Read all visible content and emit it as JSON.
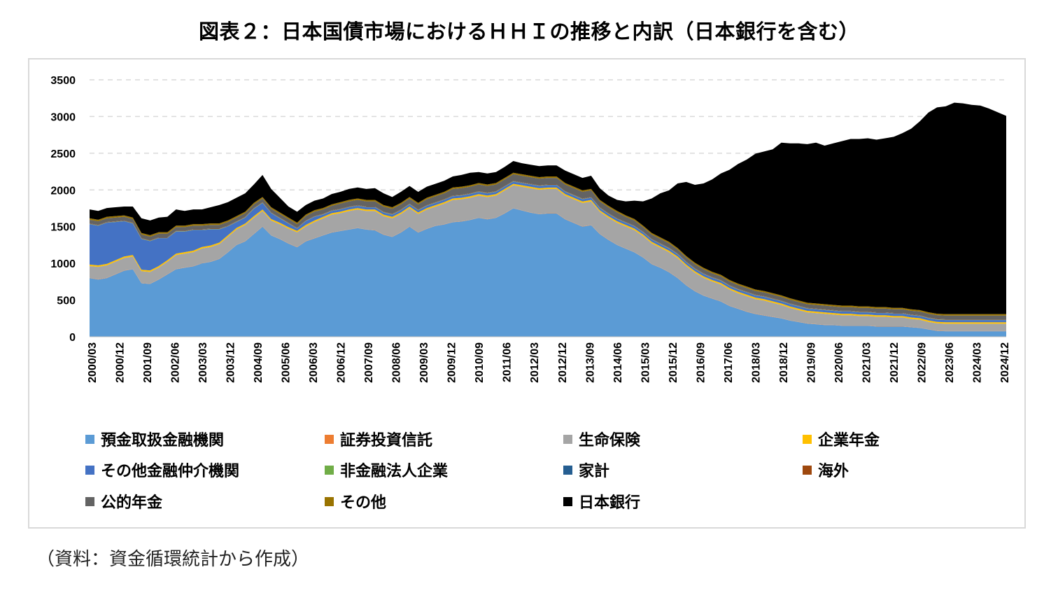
{
  "title": "図表２：日本国債市場におけるＨＨＩの推移と内訳（日本銀行を含む）",
  "source_note": "（資料：資金循環統計から作成）",
  "chart_data": {
    "type": "area",
    "stacked": true,
    "title": "図表２：日本国債市場におけるＨＨＩの推移と内訳（日本銀行を含む）",
    "xlabel": "",
    "ylabel": "",
    "ylim": [
      0,
      3500
    ],
    "yticks": [
      0,
      500,
      1000,
      1500,
      2000,
      2500,
      3000,
      3500
    ],
    "grid": "horizontal dashed",
    "legend_position": "bottom",
    "x_tick_labels": [
      "2000/03",
      "2000/12",
      "2001/09",
      "2002/06",
      "2003/03",
      "2003/12",
      "2004/09",
      "2005/06",
      "2006/03",
      "2006/12",
      "2007/09",
      "2008/06",
      "2009/03",
      "2009/12",
      "2010/09",
      "2011/06",
      "2012/03",
      "2012/12",
      "2013/09",
      "2014/06",
      "2015/03",
      "2015/12",
      "2016/09",
      "2017/06",
      "2018/03",
      "2018/12",
      "2019/09",
      "2020/06",
      "2021/03",
      "2021/12",
      "2022/09",
      "2023/06",
      "2024/03",
      "2024/12"
    ],
    "series": [
      {
        "name": "預金取扱金融機関",
        "color": "#5b9bd5",
        "values": [
          800,
          780,
          800,
          850,
          900,
          920,
          730,
          720,
          780,
          850,
          920,
          940,
          960,
          1000,
          1020,
          1060,
          1150,
          1250,
          1300,
          1400,
          1500,
          1380,
          1330,
          1270,
          1220,
          1300,
          1340,
          1380,
          1420,
          1440,
          1460,
          1480,
          1460,
          1450,
          1390,
          1360,
          1420,
          1500,
          1420,
          1470,
          1510,
          1530,
          1560,
          1570,
          1590,
          1620,
          1600,
          1620,
          1680,
          1750,
          1720,
          1690,
          1670,
          1680,
          1680,
          1600,
          1550,
          1500,
          1520,
          1400,
          1320,
          1250,
          1200,
          1150,
          1080,
          990,
          940,
          880,
          800,
          700,
          620,
          560,
          520,
          480,
          420,
          380,
          340,
          310,
          290,
          270,
          250,
          220,
          200,
          180,
          170,
          160,
          160,
          150,
          150,
          150,
          150,
          140,
          140,
          140,
          140,
          130,
          120,
          100,
          80,
          75,
          75,
          75,
          75,
          75,
          75,
          75,
          75
        ]
      },
      {
        "name": "証券投資信託",
        "color": "#ed7d31",
        "values": [
          3,
          3,
          3,
          3,
          3,
          3,
          3,
          3,
          3,
          3,
          3,
          3,
          3,
          3,
          3,
          3,
          3,
          3,
          3,
          3,
          3,
          3,
          3,
          3,
          3,
          3,
          3,
          3,
          3,
          3,
          3,
          3,
          3,
          3,
          3,
          3,
          3,
          3,
          3,
          3,
          3,
          3,
          3,
          3,
          3,
          3,
          3,
          3,
          3,
          3,
          3,
          3,
          3,
          3,
          3,
          3,
          3,
          3,
          3,
          3,
          3,
          3,
          3,
          3,
          3,
          3,
          3,
          3,
          3,
          3,
          3,
          3,
          3,
          3,
          3,
          3,
          3,
          3,
          3,
          3,
          3,
          3,
          3,
          3,
          3,
          3,
          3,
          3,
          3,
          3,
          3,
          3,
          3,
          3,
          3,
          3,
          3,
          3,
          3,
          3,
          3,
          3,
          3,
          3,
          3,
          3,
          3
        ]
      },
      {
        "name": "生命保険",
        "color": "#a5a5a5",
        "values": [
          160,
          170,
          170,
          170,
          170,
          170,
          160,
          160,
          160,
          170,
          190,
          190,
          190,
          200,
          200,
          200,
          210,
          210,
          220,
          220,
          210,
          200,
          200,
          200,
          200,
          200,
          220,
          230,
          240,
          240,
          250,
          250,
          250,
          260,
          250,
          250,
          250,
          250,
          250,
          260,
          260,
          280,
          300,
          300,
          300,
          300,
          300,
          300,
          310,
          310,
          320,
          330,
          330,
          330,
          330,
          320,
          320,
          320,
          320,
          300,
          300,
          300,
          300,
          300,
          290,
          280,
          270,
          270,
          270,
          260,
          250,
          240,
          230,
          230,
          220,
          210,
          210,
          200,
          200,
          190,
          180,
          170,
          160,
          150,
          150,
          150,
          140,
          140,
          140,
          130,
          130,
          130,
          130,
          120,
          120,
          110,
          110,
          100,
          100,
          100,
          100,
          100,
          100,
          100,
          100,
          100,
          100
        ]
      },
      {
        "name": "企業年金",
        "color": "#ffc000",
        "values": [
          20,
          20,
          20,
          20,
          20,
          20,
          20,
          20,
          20,
          20,
          20,
          20,
          20,
          20,
          20,
          20,
          20,
          20,
          20,
          20,
          20,
          20,
          20,
          20,
          20,
          20,
          20,
          20,
          20,
          20,
          20,
          20,
          20,
          20,
          20,
          20,
          20,
          20,
          20,
          20,
          20,
          20,
          20,
          20,
          20,
          20,
          20,
          20,
          20,
          20,
          20,
          20,
          20,
          20,
          20,
          20,
          20,
          20,
          20,
          20,
          20,
          20,
          20,
          20,
          20,
          20,
          20,
          20,
          20,
          20,
          20,
          20,
          20,
          20,
          20,
          20,
          20,
          20,
          20,
          20,
          20,
          20,
          20,
          20,
          20,
          20,
          20,
          20,
          20,
          20,
          20,
          20,
          20,
          20,
          20,
          20,
          20,
          20,
          20,
          20,
          20,
          20,
          20,
          20,
          20,
          20,
          20
        ]
      },
      {
        "name": "その他金融仲介機関",
        "color": "#4472c4",
        "values": [
          550,
          540,
          560,
          520,
          480,
          430,
          420,
          400,
          380,
          300,
          300,
          280,
          280,
          230,
          220,
          180,
          120,
          80,
          80,
          100,
          90,
          80,
          60,
          50,
          30,
          50,
          50,
          30,
          30,
          30,
          30,
          30,
          30,
          30,
          30,
          30,
          30,
          30,
          30,
          30,
          30,
          30,
          30,
          30,
          30,
          30,
          30,
          30,
          30,
          30,
          30,
          30,
          30,
          30,
          30,
          30,
          30,
          30,
          30,
          30,
          30,
          30,
          30,
          30,
          30,
          30,
          30,
          30,
          30,
          30,
          30,
          30,
          30,
          30,
          30,
          30,
          30,
          30,
          30,
          30,
          30,
          30,
          30,
          30,
          30,
          30,
          30,
          30,
          30,
          30,
          30,
          30,
          30,
          30,
          30,
          30,
          30,
          30,
          30,
          30,
          30,
          30,
          30,
          30,
          30,
          30,
          30
        ]
      },
      {
        "name": "非金融法人企業",
        "color": "#70ad47",
        "values": [
          3,
          3,
          3,
          3,
          3,
          3,
          3,
          3,
          3,
          3,
          3,
          3,
          3,
          3,
          3,
          3,
          3,
          3,
          3,
          3,
          3,
          3,
          3,
          3,
          3,
          3,
          3,
          3,
          3,
          3,
          3,
          3,
          3,
          3,
          3,
          3,
          3,
          3,
          3,
          3,
          3,
          3,
          3,
          3,
          3,
          3,
          3,
          3,
          3,
          3,
          3,
          3,
          3,
          3,
          3,
          3,
          3,
          3,
          3,
          3,
          3,
          3,
          3,
          3,
          3,
          3,
          3,
          3,
          3,
          3,
          3,
          3,
          3,
          3,
          3,
          3,
          3,
          3,
          3,
          3,
          3,
          3,
          3,
          3,
          3,
          3,
          3,
          3,
          3,
          3,
          3,
          3,
          3,
          3,
          3,
          3,
          3,
          3,
          3,
          3,
          3,
          3,
          3,
          3,
          3,
          3,
          3
        ]
      },
      {
        "name": "家計",
        "color": "#255e91",
        "values": [
          3,
          3,
          3,
          3,
          3,
          3,
          3,
          3,
          3,
          3,
          3,
          3,
          3,
          3,
          3,
          3,
          3,
          3,
          3,
          3,
          3,
          3,
          3,
          3,
          3,
          3,
          3,
          3,
          3,
          3,
          3,
          3,
          3,
          3,
          3,
          3,
          3,
          3,
          3,
          3,
          3,
          3,
          3,
          3,
          3,
          3,
          3,
          3,
          3,
          3,
          3,
          3,
          3,
          3,
          3,
          3,
          3,
          3,
          3,
          3,
          3,
          3,
          3,
          3,
          3,
          3,
          3,
          3,
          3,
          3,
          3,
          3,
          3,
          3,
          3,
          3,
          3,
          3,
          3,
          3,
          3,
          3,
          3,
          3,
          3,
          3,
          3,
          3,
          3,
          3,
          3,
          3,
          3,
          3,
          3,
          3,
          3,
          3,
          3,
          3,
          3,
          3,
          3,
          3,
          3,
          3,
          3
        ]
      },
      {
        "name": "海外",
        "color": "#9e480e",
        "values": [
          5,
          5,
          5,
          5,
          5,
          5,
          5,
          5,
          5,
          5,
          5,
          5,
          5,
          5,
          5,
          5,
          5,
          5,
          5,
          5,
          5,
          5,
          5,
          5,
          5,
          5,
          5,
          5,
          5,
          5,
          5,
          5,
          5,
          5,
          5,
          5,
          5,
          5,
          5,
          5,
          5,
          5,
          5,
          5,
          5,
          5,
          5,
          5,
          5,
          5,
          5,
          5,
          5,
          5,
          5,
          5,
          5,
          5,
          5,
          5,
          5,
          5,
          5,
          5,
          5,
          5,
          5,
          5,
          5,
          5,
          5,
          5,
          5,
          5,
          5,
          5,
          5,
          5,
          5,
          5,
          5,
          5,
          5,
          5,
          5,
          5,
          5,
          5,
          5,
          5,
          5,
          5,
          5,
          5,
          5,
          5,
          5,
          5,
          5,
          5,
          5,
          5,
          5,
          5,
          5,
          5,
          5
        ]
      },
      {
        "name": "公的年金",
        "color": "#636363",
        "values": [
          50,
          50,
          50,
          50,
          50,
          50,
          50,
          50,
          50,
          50,
          50,
          50,
          50,
          50,
          50,
          50,
          50,
          50,
          50,
          50,
          50,
          50,
          50,
          50,
          50,
          60,
          60,
          60,
          60,
          70,
          70,
          70,
          70,
          70,
          70,
          70,
          70,
          70,
          70,
          80,
          80,
          80,
          90,
          90,
          90,
          90,
          90,
          90,
          90,
          90,
          90,
          90,
          90,
          90,
          90,
          90,
          90,
          90,
          90,
          80,
          80,
          80,
          70,
          70,
          60,
          60,
          60,
          60,
          55,
          55,
          55,
          55,
          50,
          50,
          50,
          50,
          50,
          50,
          50,
          50,
          50,
          50,
          50,
          50,
          50,
          50,
          50,
          50,
          50,
          50,
          50,
          50,
          50,
          50,
          50,
          50,
          50,
          50,
          50,
          50,
          50,
          50,
          50,
          50,
          50,
          50,
          50
        ]
      },
      {
        "name": "その他",
        "color": "#997300",
        "values": [
          20,
          20,
          20,
          20,
          20,
          20,
          20,
          20,
          20,
          20,
          20,
          20,
          20,
          20,
          20,
          20,
          20,
          20,
          20,
          20,
          20,
          20,
          20,
          20,
          20,
          20,
          20,
          20,
          20,
          20,
          20,
          20,
          20,
          20,
          20,
          20,
          20,
          20,
          20,
          20,
          20,
          20,
          20,
          20,
          20,
          20,
          20,
          20,
          20,
          20,
          20,
          20,
          20,
          20,
          20,
          20,
          20,
          20,
          20,
          20,
          20,
          20,
          20,
          20,
          20,
          20,
          20,
          20,
          20,
          20,
          20,
          20,
          20,
          20,
          20,
          20,
          20,
          20,
          20,
          20,
          20,
          20,
          20,
          20,
          20,
          20,
          20,
          20,
          20,
          20,
          20,
          20,
          20,
          20,
          20,
          20,
          20,
          20,
          20,
          20,
          20,
          20,
          20,
          20,
          20,
          20,
          20
        ]
      },
      {
        "name": "日本銀行",
        "color": "#000000",
        "values": [
          120,
          120,
          120,
          120,
          120,
          150,
          200,
          200,
          200,
          210,
          220,
          200,
          200,
          200,
          220,
          250,
          250,
          250,
          250,
          250,
          300,
          250,
          200,
          150,
          150,
          130,
          130,
          130,
          140,
          140,
          150,
          150,
          150,
          160,
          160,
          140,
          150,
          150,
          150,
          150,
          150,
          150,
          150,
          160,
          170,
          150,
          150,
          150,
          150,
          160,
          150,
          150,
          150,
          150,
          150,
          170,
          170,
          170,
          180,
          160,
          140,
          150,
          190,
          250,
          330,
          470,
          600,
          700,
          880,
          1010,
          1060,
          1150,
          1260,
          1380,
          1500,
          1630,
          1730,
          1850,
          1900,
          1960,
          2080,
          2110,
          2140,
          2160,
          2190,
          2160,
          2200,
          2240,
          2270,
          2280,
          2290,
          2280,
          2300,
          2330,
          2380,
          2460,
          2570,
          2720,
          2810,
          2830,
          2880,
          2870,
          2850,
          2840,
          2800,
          2750,
          2700
        ]
      }
    ]
  }
}
